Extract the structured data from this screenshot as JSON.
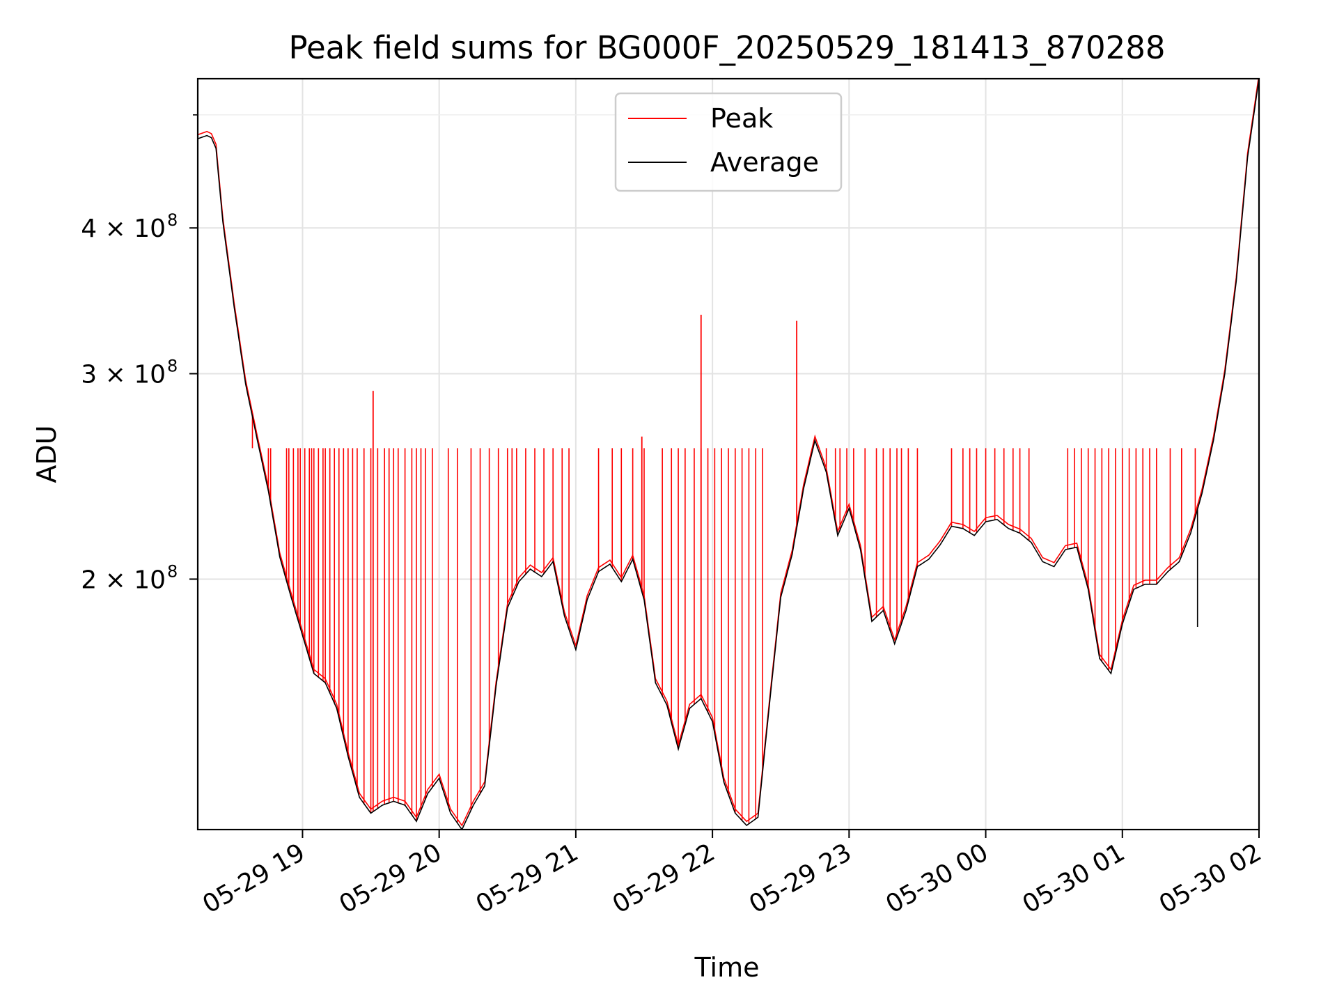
{
  "chart_data": {
    "type": "line",
    "title": "Peak field sums for BG000F_20250529_181413_870288",
    "xlabel": "Time",
    "ylabel": "ADU",
    "y_scale": "log",
    "ylim": [
      122000000,
      537000000
    ],
    "xlim": [
      "05-29 18:14",
      "05-30 02:00"
    ],
    "grid": true,
    "legend": {
      "position": "upper center",
      "entries": [
        "Peak",
        "Average"
      ]
    },
    "x_ticks": [
      {
        "label": "05-29 19",
        "value": "05-29 19:00"
      },
      {
        "label": "05-29 20",
        "value": "05-29 20:00"
      },
      {
        "label": "05-29 21",
        "value": "05-29 21:00"
      },
      {
        "label": "05-29 22",
        "value": "05-29 22:00"
      },
      {
        "label": "05-29 23",
        "value": "05-29 23:00"
      },
      {
        "label": "05-30 00",
        "value": "05-30 00:00"
      },
      {
        "label": "05-30 01",
        "value": "05-30 01:00"
      },
      {
        "label": "05-30 02",
        "value": "05-30 02:00"
      }
    ],
    "y_ticks": [
      {
        "label": "2 × 10",
        "exponent": "8",
        "value": 200000000
      },
      {
        "label": "3 × 10",
        "exponent": "8",
        "value": 300000000
      },
      {
        "label": "4 × 10",
        "exponent": "8",
        "value": 400000000
      }
    ],
    "series": [
      {
        "name": "Average",
        "color": "#000000",
        "x": [
          "05-29 18:14",
          "05-29 18:18",
          "05-29 18:20",
          "05-29 18:22",
          "05-29 18:25",
          "05-29 18:30",
          "05-29 18:35",
          "05-29 18:40",
          "05-29 18:45",
          "05-29 18:50",
          "05-29 18:55",
          "05-29 19:00",
          "05-29 19:05",
          "05-29 19:10",
          "05-29 19:15",
          "05-29 19:20",
          "05-29 19:25",
          "05-29 19:30",
          "05-29 19:35",
          "05-29 19:40",
          "05-29 19:45",
          "05-29 19:50",
          "05-29 19:55",
          "05-29 20:00",
          "05-29 20:05",
          "05-29 20:10",
          "05-29 20:15",
          "05-29 20:20",
          "05-29 20:25",
          "05-29 20:30",
          "05-29 20:35",
          "05-29 20:40",
          "05-29 20:45",
          "05-29 20:50",
          "05-29 20:55",
          "05-29 21:00",
          "05-29 21:05",
          "05-29 21:10",
          "05-29 21:15",
          "05-29 21:20",
          "05-29 21:25",
          "05-29 21:30",
          "05-29 21:35",
          "05-29 21:40",
          "05-29 21:45",
          "05-29 21:50",
          "05-29 21:55",
          "05-29 22:00",
          "05-29 22:05",
          "05-29 22:10",
          "05-29 22:15",
          "05-29 22:20",
          "05-29 22:25",
          "05-29 22:30",
          "05-29 22:35",
          "05-29 22:40",
          "05-29 22:45",
          "05-29 22:50",
          "05-29 22:55",
          "05-29 23:00",
          "05-29 23:05",
          "05-29 23:10",
          "05-29 23:15",
          "05-29 23:20",
          "05-29 23:25",
          "05-29 23:30",
          "05-29 23:35",
          "05-29 23:40",
          "05-29 23:45",
          "05-29 23:50",
          "05-29 23:55",
          "05-30 00:00",
          "05-30 00:05",
          "05-30 00:10",
          "05-30 00:15",
          "05-30 00:20",
          "05-30 00:25",
          "05-30 00:30",
          "05-30 00:35",
          "05-30 00:40",
          "05-30 00:45",
          "05-30 00:50",
          "05-30 00:55",
          "05-30 01:00",
          "05-30 01:05",
          "05-30 01:10",
          "05-30 01:15",
          "05-30 01:20",
          "05-30 01:25",
          "05-30 01:30",
          "05-30 01:35",
          "05-30 01:40",
          "05-30 01:45",
          "05-30 01:50",
          "05-30 01:55",
          "05-30 02:00"
        ],
        "values": [
          477000000,
          480000000,
          478000000,
          468000000,
          405000000,
          342000000,
          294000000,
          264000000,
          238000000,
          209000000,
          193000000,
          179000000,
          166000000,
          163000000,
          155000000,
          141000000,
          130000000,
          126000000,
          128000000,
          129000000,
          128000000,
          124000000,
          131000000,
          135000000,
          126000000,
          122000000,
          128000000,
          133000000,
          162000000,
          189000000,
          199000000,
          204000000,
          201000000,
          207000000,
          186000000,
          174000000,
          192000000,
          203000000,
          206000000,
          199000000,
          208000000,
          192000000,
          163000000,
          156000000,
          143000000,
          155000000,
          158000000,
          151000000,
          134000000,
          126000000,
          123000000,
          125000000,
          156000000,
          193000000,
          210000000,
          239000000,
          263000000,
          247000000,
          218000000,
          230000000,
          212000000,
          184000000,
          188000000,
          176000000,
          188000000,
          205000000,
          208000000,
          214000000,
          222000000,
          221000000,
          218000000,
          224000000,
          225000000,
          221000000,
          219000000,
          215000000,
          207000000,
          205000000,
          212000000,
          213000000,
          196000000,
          171000000,
          166000000,
          183000000,
          196000000,
          198000000,
          198000000,
          203000000,
          207000000,
          219000000,
          237000000,
          263000000,
          300000000,
          360000000,
          460000000,
          537000000
        ]
      },
      {
        "name": "Peak",
        "color": "#ff0000",
        "baseline_offset_fraction": 0.008,
        "saturation_level": 259000000,
        "spike_times": [
          "05-29 18:38",
          "05-29 18:45",
          "05-29 18:46",
          "05-29 18:53",
          "05-29 18:54",
          "05-29 18:56",
          "05-29 18:58",
          "05-29 18:59",
          "05-29 19:01",
          "05-29 19:03",
          "05-29 19:04",
          "05-29 19:05",
          "05-29 19:07",
          "05-29 19:09",
          "05-29 19:10",
          "05-29 19:12",
          "05-29 19:14",
          "05-29 19:16",
          "05-29 19:18",
          "05-29 19:20",
          "05-29 19:22",
          "05-29 19:24",
          "05-29 19:27",
          "05-29 19:30",
          "05-29 19:33",
          "05-29 19:36",
          "05-29 19:38",
          "05-29 19:40",
          "05-29 19:42",
          "05-29 19:45",
          "05-29 19:48",
          "05-29 19:50",
          "05-29 19:52",
          "05-29 19:54",
          "05-29 19:57",
          "05-29 20:04",
          "05-29 20:08",
          "05-29 20:14",
          "05-29 20:18",
          "05-29 20:22",
          "05-29 20:26",
          "05-29 20:30",
          "05-29 20:32",
          "05-29 20:34",
          "05-29 20:38",
          "05-29 20:42",
          "05-29 20:46",
          "05-29 20:50",
          "05-29 20:54",
          "05-29 20:57",
          "05-29 21:10",
          "05-29 21:16",
          "05-29 21:20",
          "05-29 21:25",
          "05-29 21:30",
          "05-29 21:38",
          "05-29 21:42",
          "05-29 21:45",
          "05-29 21:48",
          "05-29 21:52",
          "05-29 21:55",
          "05-29 21:58",
          "05-29 22:01",
          "05-29 22:04",
          "05-29 22:07",
          "05-29 22:10",
          "05-29 22:13",
          "05-29 22:16",
          "05-29 22:19",
          "05-29 22:22",
          "05-29 22:46",
          "05-29 22:50",
          "05-29 22:54",
          "05-29 22:56",
          "05-29 22:59",
          "05-29 23:02",
          "05-29 23:07",
          "05-29 23:12",
          "05-29 23:15",
          "05-29 23:18",
          "05-29 23:21",
          "05-29 23:23",
          "05-29 23:26",
          "05-29 23:30",
          "05-29 23:45",
          "05-29 23:50",
          "05-29 23:53",
          "05-29 23:56",
          "05-30 00:00",
          "05-30 00:04",
          "05-30 00:08",
          "05-30 00:12",
          "05-30 00:15",
          "05-30 00:19",
          "05-30 00:36",
          "05-30 00:39",
          "05-30 00:42",
          "05-30 00:45",
          "05-30 00:48",
          "05-30 00:51",
          "05-30 00:54",
          "05-30 00:57",
          "05-30 01:00",
          "05-30 01:03",
          "05-30 01:06",
          "05-30 01:09",
          "05-30 01:12",
          "05-30 01:15",
          "05-30 01:21",
          "05-30 01:26",
          "05-30 01:32"
        ],
        "tall_spikes": [
          {
            "time": "05-29 19:31",
            "value": 290000000
          },
          {
            "time": "05-29 21:29",
            "value": 265000000
          },
          {
            "time": "05-29 21:55",
            "value": 337000000
          },
          {
            "time": "05-29 22:37",
            "value": 333000000
          }
        ]
      }
    ]
  }
}
